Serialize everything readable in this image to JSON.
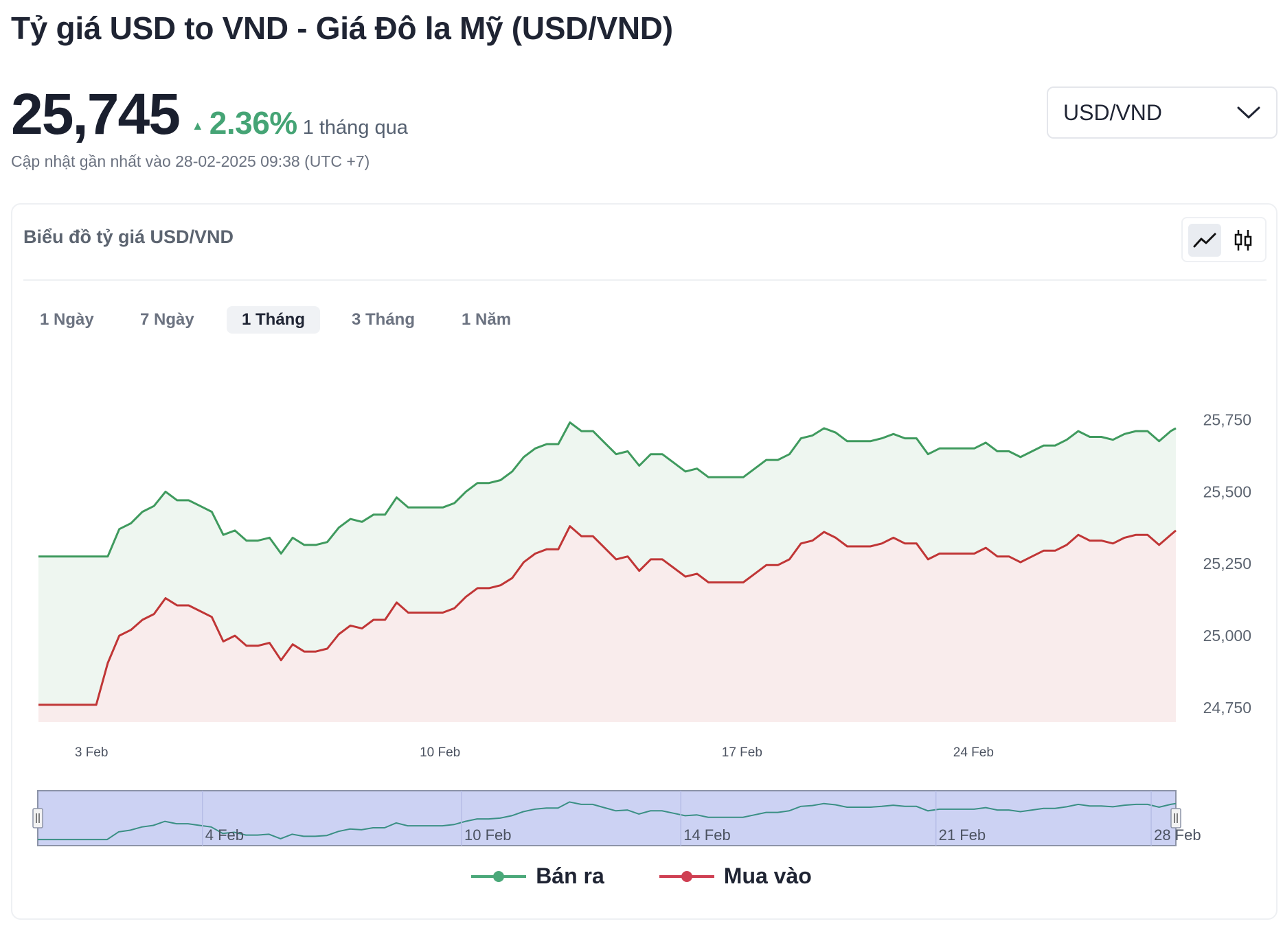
{
  "header": {
    "title": "Tỷ giá USD to VND - Giá Đô la Mỹ (USD/VND)",
    "price": "25,745",
    "change_arrow": "▲",
    "change_pct": "2.36%",
    "change_period": "1 tháng qua",
    "updated": "Cập nhật gần nhất vào 28-02-2025 09:38 (UTC +7)"
  },
  "pair_selector": {
    "value": "USD/VND",
    "icon": "chevron-down-icon"
  },
  "card": {
    "title": "Biểu đồ tỷ giá USD/VND",
    "chart_type_icons": [
      "line-chart-icon",
      "candlestick-icon"
    ],
    "period_tabs": [
      "1 Ngày",
      "7 Ngày",
      "1 Tháng",
      "3 Tháng",
      "1 Năm"
    ],
    "active_tab": "1 Tháng"
  },
  "colors": {
    "sell": "#3f9a5e",
    "sell_fill": "#eef6f0",
    "buy": "#c03636",
    "buy_fill": "#f9ecec",
    "navigator_fill": "#ccd2f3",
    "navigator_border": "#8c93a7",
    "navigator_line": "#3a8f84"
  },
  "chart_data": {
    "type": "line",
    "title": "Biểu đồ tỷ giá USD/VND",
    "xlabel": "",
    "ylabel": "",
    "ylim": [
      24700,
      25920
    ],
    "yticks": [
      24750,
      25000,
      25250,
      25500,
      25750
    ],
    "ytick_labels": [
      "24,750",
      "25,000",
      "25,250",
      "25,500",
      "25,750"
    ],
    "x_start": 0,
    "x_end": 28.55,
    "xticks": [
      {
        "x": 1.33,
        "label": "3 Feb"
      },
      {
        "x": 10.08,
        "label": "10 Feb"
      },
      {
        "x": 17.66,
        "label": "17 Feb"
      },
      {
        "x": 23.47,
        "label": "24 Feb"
      }
    ],
    "navigator": {
      "ticks": [
        {
          "x": 4.2,
          "label": "4 Feb"
        },
        {
          "x": 10.7,
          "label": "10 Feb"
        },
        {
          "x": 16.2,
          "label": "14 Feb"
        },
        {
          "x": 22.6,
          "label": "21 Feb"
        },
        {
          "x": 28.0,
          "label": "28 Feb"
        }
      ]
    },
    "series": [
      {
        "name": "Bán ra",
        "x": [
          0,
          1.74,
          2.03,
          2.32,
          2.61,
          2.9,
          3.19,
          3.48,
          3.77,
          4.06,
          4.35,
          4.64,
          4.93,
          5.22,
          5.51,
          5.8,
          6.09,
          6.38,
          6.67,
          6.96,
          7.25,
          7.54,
          7.83,
          8.12,
          8.41,
          8.7,
          8.99,
          9.28,
          9.57,
          9.86,
          10.15,
          10.44,
          10.73,
          11.02,
          11.31,
          11.6,
          11.89,
          12.18,
          12.47,
          12.76,
          13.05,
          13.34,
          13.63,
          13.92,
          14.21,
          14.5,
          14.79,
          15.08,
          15.37,
          15.66,
          15.95,
          16.24,
          16.53,
          16.82,
          17.11,
          17.4,
          17.69,
          17.98,
          18.27,
          18.56,
          18.85,
          19.14,
          19.43,
          19.72,
          20.01,
          20.3,
          20.59,
          20.88,
          21.17,
          21.46,
          21.75,
          22.04,
          22.33,
          22.62,
          22.91,
          23.2,
          23.49,
          23.78,
          24.07,
          24.36,
          24.65,
          24.94,
          25.23,
          25.52,
          25.81,
          26.1,
          26.39,
          26.68,
          26.97,
          27.26,
          27.55,
          27.84,
          28.13,
          28.42,
          28.55
        ],
        "values": [
          25275,
          25275,
          25370,
          25390,
          25430,
          25450,
          25500,
          25470,
          25470,
          25450,
          25430,
          25350,
          25365,
          25330,
          25330,
          25340,
          25285,
          25340,
          25315,
          25315,
          25325,
          25375,
          25405,
          25395,
          25420,
          25420,
          25480,
          25445,
          25445,
          25445,
          25445,
          25460,
          25500,
          25530,
          25530,
          25540,
          25570,
          25620,
          25650,
          25665,
          25665,
          25740,
          25710,
          25710,
          25670,
          25630,
          25640,
          25590,
          25630,
          25630,
          25600,
          25570,
          25580,
          25550,
          25550,
          25550,
          25550,
          25580,
          25610,
          25610,
          25630,
          25685,
          25695,
          25720,
          25705,
          25675,
          25675,
          25675,
          25685,
          25700,
          25685,
          25685,
          25630,
          25650,
          25650,
          25650,
          25650,
          25670,
          25640,
          25640,
          25620,
          25640,
          25660,
          25660,
          25680,
          25710,
          25690,
          25690,
          25680,
          25700,
          25710,
          25710,
          25675,
          25710,
          25720
        ]
      },
      {
        "name": "Mua vào",
        "x": [
          0,
          1.45,
          1.74,
          2.03,
          2.32,
          2.61,
          2.9,
          3.19,
          3.48,
          3.77,
          4.06,
          4.35,
          4.64,
          4.93,
          5.22,
          5.51,
          5.8,
          6.09,
          6.38,
          6.67,
          6.96,
          7.25,
          7.54,
          7.83,
          8.12,
          8.41,
          8.7,
          8.99,
          9.28,
          9.57,
          9.86,
          10.15,
          10.44,
          10.73,
          11.02,
          11.31,
          11.6,
          11.89,
          12.18,
          12.47,
          12.76,
          13.05,
          13.34,
          13.63,
          13.92,
          14.21,
          14.5,
          14.79,
          15.08,
          15.37,
          15.66,
          15.95,
          16.24,
          16.53,
          16.82,
          17.11,
          17.4,
          17.69,
          17.98,
          18.27,
          18.56,
          18.85,
          19.14,
          19.43,
          19.72,
          20.01,
          20.3,
          20.59,
          20.88,
          21.17,
          21.46,
          21.75,
          22.04,
          22.33,
          22.62,
          22.91,
          23.2,
          23.49,
          23.78,
          24.07,
          24.36,
          24.65,
          24.94,
          25.23,
          25.52,
          25.81,
          26.1,
          26.39,
          26.68,
          26.97,
          27.26,
          27.55,
          27.84,
          28.13,
          28.42,
          28.55
        ],
        "values": [
          24760,
          24760,
          24905,
          25000,
          25020,
          25055,
          25075,
          25130,
          25105,
          25105,
          25085,
          25065,
          24980,
          25000,
          24965,
          24965,
          24975,
          24915,
          24970,
          24945,
          24945,
          24955,
          25005,
          25035,
          25025,
          25055,
          25055,
          25115,
          25080,
          25080,
          25080,
          25080,
          25095,
          25135,
          25165,
          25165,
          25175,
          25200,
          25255,
          25285,
          25300,
          25300,
          25380,
          25345,
          25345,
          25305,
          25265,
          25275,
          25225,
          25265,
          25265,
          25235,
          25205,
          25215,
          25185,
          25185,
          25185,
          25185,
          25215,
          25245,
          25245,
          25265,
          25320,
          25330,
          25360,
          25340,
          25310,
          25310,
          25310,
          25320,
          25340,
          25320,
          25320,
          25265,
          25285,
          25285,
          25285,
          25285,
          25305,
          25275,
          25275,
          25255,
          25275,
          25295,
          25295,
          25315,
          25350,
          25330,
          25330,
          25320,
          25340,
          25350,
          25350,
          25315,
          25350,
          25365
        ]
      }
    ]
  }
}
